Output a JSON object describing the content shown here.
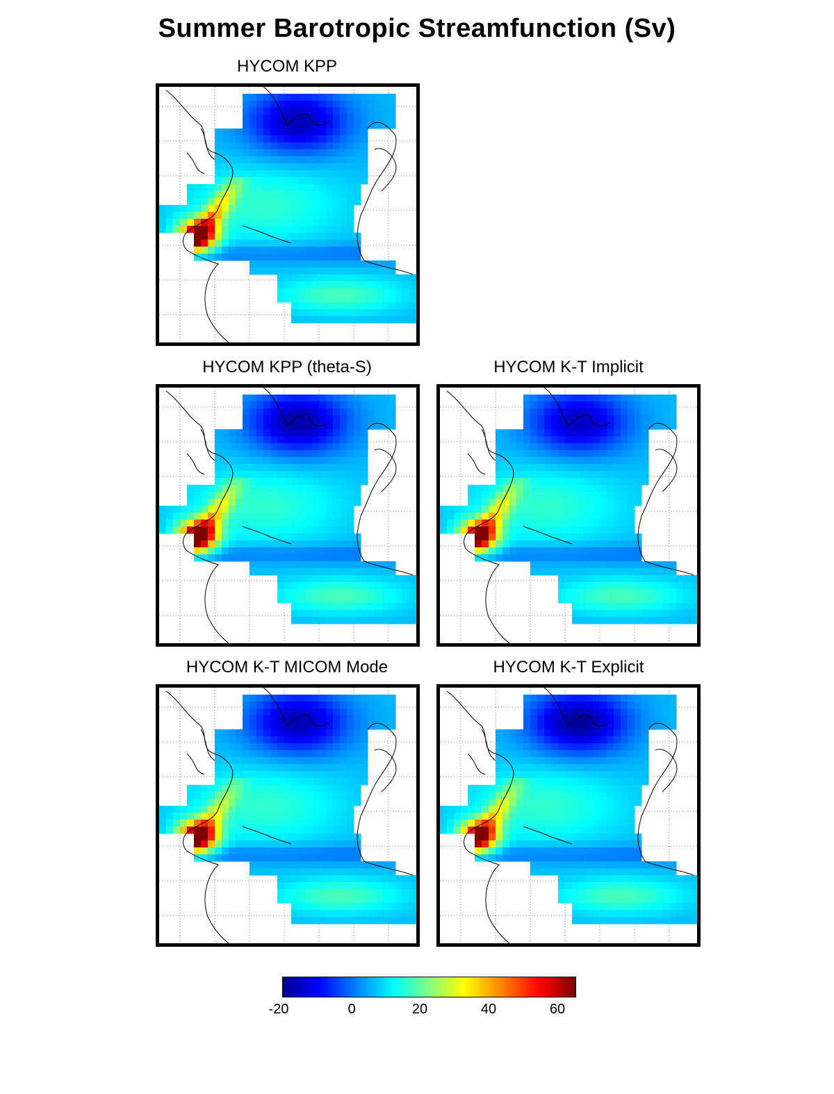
{
  "title": "Summer Barotropic Streamfunction (Sv)",
  "panels": [
    {
      "label": "HYCOM KPP"
    },
    {
      "label": "HYCOM KPP (theta-S)"
    },
    {
      "label": "HYCOM K-T Implicit"
    },
    {
      "label": "HYCOM K-T MICOM Mode"
    },
    {
      "label": "HYCOM K-T Explicit"
    }
  ],
  "colorbar": {
    "ticks": [
      "-20",
      "0",
      "20",
      "40",
      "60"
    ],
    "range": [
      -20,
      65
    ],
    "colormap": "jet"
  }
}
